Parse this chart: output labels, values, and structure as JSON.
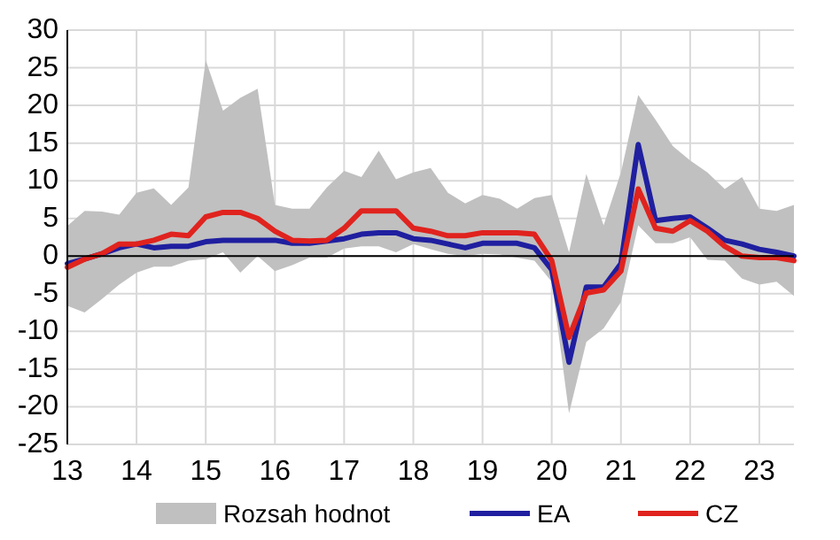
{
  "chart_data": {
    "type": "line",
    "x": [
      13,
      13.25,
      13.5,
      13.75,
      14,
      14.25,
      14.5,
      14.75,
      15,
      15.25,
      15.5,
      15.75,
      16,
      16.25,
      16.5,
      16.75,
      17,
      17.25,
      17.5,
      17.75,
      18,
      18.25,
      18.5,
      18.75,
      19,
      19.25,
      19.5,
      19.75,
      20,
      20.25,
      20.5,
      20.75,
      21,
      21.25,
      21.5,
      21.75,
      22,
      22.25,
      22.5,
      22.75,
      23,
      23.25,
      23.5
    ],
    "series": [
      {
        "name": "Rozsah hodnot",
        "type": "area",
        "color": "#c0c0c0",
        "values": [
          null,
          null,
          null,
          null,
          null,
          null,
          null,
          null,
          null,
          null,
          null,
          null,
          null,
          null,
          null,
          null,
          null,
          null,
          null,
          null,
          null,
          null,
          null,
          null,
          null,
          null,
          null,
          null,
          null,
          null,
          null,
          null,
          null,
          null,
          null,
          null,
          null,
          null,
          null,
          null,
          null,
          null,
          null
        ],
        "lower": [
          -6.6,
          -7.5,
          -5.7,
          -3.8,
          -2.2,
          -1.4,
          -1.4,
          -0.6,
          -0.4,
          0.5,
          -2.2,
          0,
          -2,
          -1.2,
          -0.2,
          -0.2,
          1,
          1.3,
          1.3,
          0.5,
          1.6,
          0.9,
          0.3,
          0,
          0.3,
          0.2,
          -0.2,
          -0.6,
          -3.4,
          -20.9,
          -11.4,
          -9.6,
          -6.1,
          4.1,
          1.7,
          1.7,
          2.5,
          -0.5,
          -0.6,
          -3,
          -3.8,
          -3.4,
          -5.3
        ],
        "upper": [
          4,
          6,
          5.9,
          5.5,
          8.4,
          9,
          6.8,
          9.1,
          26,
          19.3,
          21,
          22.2,
          6.8,
          6.3,
          6.3,
          9.1,
          11.3,
          10.5,
          14,
          10.2,
          11.1,
          11.7,
          8.4,
          7,
          8.1,
          7.6,
          6.3,
          7.7,
          8.1,
          0.5,
          10.9,
          4.1,
          11.1,
          21.4,
          18.1,
          14.6,
          12.7,
          11.1,
          8.9,
          10.5,
          6.3,
          6,
          6.8
        ]
      },
      {
        "name": "EA",
        "color": "#1f1fa0",
        "values": [
          -1,
          -0.4,
          0.3,
          1.1,
          1.6,
          1.1,
          1.3,
          1.3,
          1.9,
          2.1,
          2.1,
          2.1,
          2.1,
          1.7,
          1.7,
          2,
          2.3,
          2.9,
          3.1,
          3.1,
          2.3,
          2.1,
          1.6,
          1.1,
          1.7,
          1.7,
          1.7,
          1.1,
          -1.8,
          -14.1,
          -4.1,
          -4.1,
          -1,
          14.8,
          4.7,
          5,
          5.2,
          3.7,
          2.1,
          1.6,
          0.9,
          0.5,
          0
        ]
      },
      {
        "name": "CZ",
        "color": "#e0231e",
        "values": [
          -1.5,
          -0.4,
          0.3,
          1.6,
          1.6,
          2.1,
          2.9,
          2.7,
          5.2,
          5.8,
          5.8,
          5,
          3.3,
          2.1,
          2,
          2.1,
          3.7,
          6,
          6,
          6,
          3.7,
          3.3,
          2.7,
          2.7,
          3.1,
          3.1,
          3.1,
          2.9,
          -0.6,
          -10.8,
          -4.9,
          -4.5,
          -2,
          8.9,
          3.7,
          3.3,
          4.7,
          3.3,
          1.3,
          0,
          -0.2,
          -0.2,
          -0.6
        ]
      }
    ],
    "xlim": [
      13,
      23.5
    ],
    "xticks": [
      13,
      14,
      15,
      16,
      17,
      18,
      19,
      20,
      21,
      22,
      23
    ],
    "ylim": [
      -25,
      30
    ],
    "yticks": [
      -25,
      -20,
      -15,
      -10,
      -5,
      0,
      5,
      10,
      15,
      20,
      25,
      30
    ],
    "grid": true,
    "legend": "bottom"
  }
}
